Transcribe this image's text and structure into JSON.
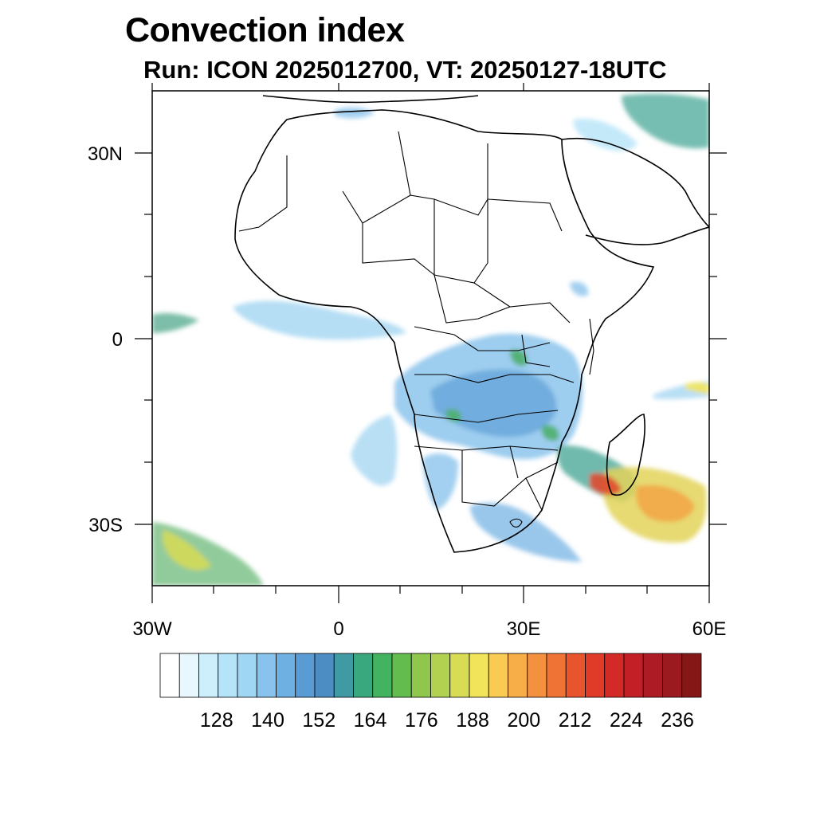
{
  "title": "Convection index",
  "subtitle": "Run: ICON 2025012700,  VT: 20250127-18UTC",
  "axes": {
    "x_ticks": [
      "30W",
      "0",
      "30E",
      "60E"
    ],
    "y_ticks": [
      "30N",
      "0",
      "30S"
    ]
  },
  "colorbar": {
    "labels": [
      "128",
      "140",
      "152",
      "164",
      "176",
      "188",
      "200",
      "212",
      "224",
      "236"
    ],
    "colors": [
      "#ffffff",
      "#e8f6fd",
      "#cdeefb",
      "#b5e3f8",
      "#9fd6f3",
      "#87c3ec",
      "#6fb0e2",
      "#5a9bd4",
      "#4c8ec4",
      "#3f9aa4",
      "#3aa87e",
      "#44b35f",
      "#62bc4e",
      "#8ec74c",
      "#b3d150",
      "#d8dc55",
      "#f2e45a",
      "#f9cb52",
      "#f7ad48",
      "#f4913f",
      "#ef7335",
      "#e8552d",
      "#df3b28",
      "#d32a27",
      "#c21f26",
      "#ad1b24",
      "#9a1a20",
      "#861717"
    ]
  }
}
